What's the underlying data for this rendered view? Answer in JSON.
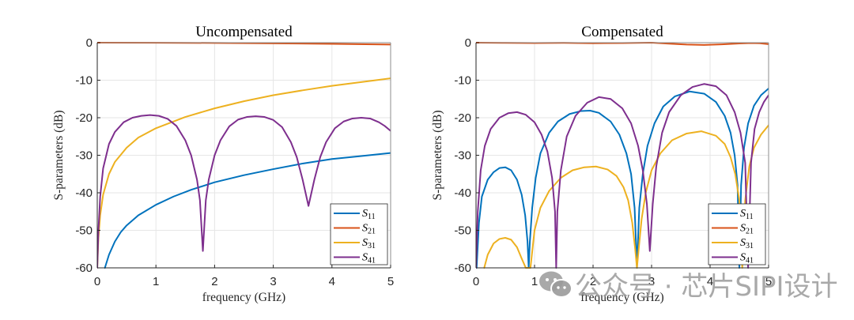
{
  "chart_data": [
    {
      "type": "line",
      "title": "Uncompensated",
      "xlabel": "frequency (GHz)",
      "ylabel": "S-parameters (dB)",
      "xlim": [
        0,
        5
      ],
      "ylim": [
        -60,
        0
      ],
      "xticks": [
        0,
        1,
        2,
        3,
        4,
        5
      ],
      "yticks": [
        0,
        -10,
        -20,
        -30,
        -40,
        -50,
        -60
      ],
      "grid": true,
      "legend_position": "bottom-right",
      "series": [
        {
          "name": "S11",
          "sub": "11",
          "color": "#0072BD",
          "x": [
            0.13,
            0.2,
            0.3,
            0.4,
            0.5,
            0.7,
            1.0,
            1.3,
            1.6,
            2.0,
            2.5,
            3.0,
            3.5,
            4.0,
            4.5,
            5.0
          ],
          "y": [
            -60,
            -56.5,
            -53,
            -50.5,
            -48.7,
            -46,
            -43.2,
            -41,
            -39.2,
            -37.2,
            -35.3,
            -33.7,
            -32.2,
            -31.0,
            -30.2,
            -29.4
          ]
        },
        {
          "name": "S21",
          "sub": "21",
          "color": "#D95319",
          "x": [
            0,
            1,
            2,
            3,
            4,
            5
          ],
          "y": [
            0,
            -0.02,
            -0.08,
            -0.18,
            -0.32,
            -0.5
          ]
        },
        {
          "name": "S31",
          "sub": "31",
          "color": "#EDB120",
          "x": [
            0.0,
            0.02,
            0.05,
            0.1,
            0.2,
            0.3,
            0.5,
            0.7,
            1.0,
            1.5,
            2.0,
            2.5,
            3.0,
            3.5,
            4.0,
            4.5,
            5.0
          ],
          "y": [
            -60,
            -52,
            -46,
            -40.5,
            -35,
            -31.8,
            -28,
            -25.3,
            -22.8,
            -19.8,
            -17.5,
            -15.6,
            -14.0,
            -12.7,
            -11.5,
            -10.5,
            -9.5
          ]
        },
        {
          "name": "S41",
          "sub": "41",
          "color": "#7E2F8E",
          "x": [
            0.0,
            0.02,
            0.05,
            0.1,
            0.2,
            0.3,
            0.45,
            0.6,
            0.75,
            0.9,
            1.05,
            1.2,
            1.35,
            1.5,
            1.6,
            1.7,
            1.75,
            1.8,
            1.85,
            1.9,
            2.0,
            2.1,
            2.25,
            2.4,
            2.55,
            2.7,
            2.85,
            3.0,
            3.15,
            3.3,
            3.4,
            3.5,
            3.55,
            3.6,
            3.65,
            3.7,
            3.8,
            3.9,
            4.05,
            4.2,
            4.35,
            4.5,
            4.65,
            4.8,
            4.9,
            5.0
          ],
          "y": [
            -60,
            -50,
            -41,
            -33.5,
            -27,
            -23.8,
            -21.2,
            -20,
            -19.5,
            -19.3,
            -19.5,
            -20.3,
            -22.2,
            -26,
            -30,
            -36.5,
            -42,
            -55.5,
            -42,
            -36.5,
            -30,
            -26,
            -22.3,
            -20.5,
            -19.8,
            -19.6,
            -19.8,
            -20.6,
            -22.5,
            -26.5,
            -30.5,
            -36.5,
            -40,
            -43.5,
            -40,
            -36.5,
            -30.5,
            -26.5,
            -22.8,
            -21,
            -20.2,
            -20.0,
            -20.2,
            -21.2,
            -22.2,
            -23.5
          ]
        }
      ]
    },
    {
      "type": "line",
      "title": "Compensated",
      "xlabel": "frequency (GHz)",
      "ylabel": "S-parameters (dB)",
      "xlim": [
        0,
        5
      ],
      "ylim": [
        -60,
        0
      ],
      "xticks": [
        0,
        1,
        2,
        3,
        4,
        5
      ],
      "yticks": [
        0,
        -10,
        -20,
        -30,
        -40,
        -50,
        -60
      ],
      "grid": true,
      "legend_position": "bottom-right",
      "series": [
        {
          "name": "S11",
          "sub": "11",
          "color": "#0072BD",
          "x": [
            0.01,
            0.05,
            0.1,
            0.2,
            0.3,
            0.4,
            0.5,
            0.6,
            0.7,
            0.78,
            0.84,
            0.88,
            0.9,
            0.92,
            0.96,
            1.02,
            1.1,
            1.25,
            1.4,
            1.6,
            1.8,
            1.95,
            2.1,
            2.3,
            2.45,
            2.57,
            2.65,
            2.71,
            2.75,
            2.79,
            2.85,
            2.93,
            3.05,
            3.2,
            3.4,
            3.65,
            3.9,
            4.1,
            4.25,
            4.35,
            4.42,
            4.47,
            4.5,
            4.53,
            4.58,
            4.65,
            4.75,
            4.87,
            5.0
          ],
          "y": [
            -60,
            -48,
            -41,
            -36.5,
            -34.5,
            -33.4,
            -33.2,
            -34,
            -36.5,
            -40.5,
            -46,
            -53,
            -60,
            -53,
            -44,
            -36,
            -29.5,
            -24,
            -21,
            -19,
            -18.2,
            -18.1,
            -18.7,
            -21,
            -24.5,
            -29.5,
            -35,
            -44,
            -60,
            -44,
            -35,
            -27.5,
            -21.5,
            -17,
            -14.3,
            -13.0,
            -13.6,
            -15.8,
            -19.5,
            -24,
            -30,
            -38,
            -60,
            -38,
            -28,
            -21.5,
            -16.8,
            -14,
            -12.2
          ]
        },
        {
          "name": "S21",
          "sub": "21",
          "color": "#D95319",
          "x": [
            0,
            0.5,
            1,
            1.5,
            2,
            2.5,
            3,
            3.3,
            3.6,
            3.9,
            4.2,
            4.5,
            4.7,
            4.85,
            5.0
          ],
          "y": [
            0,
            -0.05,
            -0.1,
            -0.05,
            -0.15,
            -0.1,
            0,
            -0.25,
            -0.5,
            -0.6,
            -0.45,
            -0.2,
            -0.1,
            -0.15,
            -0.4
          ]
        },
        {
          "name": "S31",
          "sub": "31",
          "color": "#EDB120",
          "x": [
            0.14,
            0.2,
            0.3,
            0.4,
            0.5,
            0.6,
            0.7,
            0.78,
            0.85,
            0.93,
            1.0,
            1.1,
            1.25,
            1.45,
            1.65,
            1.85,
            2.05,
            2.25,
            2.4,
            2.52,
            2.6,
            2.67,
            2.72,
            2.75,
            2.78,
            2.83,
            2.9,
            3.0,
            3.15,
            3.35,
            3.6,
            3.85,
            4.1,
            4.25,
            4.35,
            4.43,
            4.5,
            4.55,
            4.6,
            4.67,
            4.75,
            4.87,
            5.0
          ],
          "y": [
            -60,
            -56.5,
            -53.5,
            -52.3,
            -52,
            -52.5,
            -54.5,
            -57.5,
            -60,
            -60,
            -50,
            -44,
            -39.5,
            -36,
            -34,
            -33.2,
            -33.0,
            -33.8,
            -35.5,
            -38.5,
            -42,
            -48,
            -55,
            -60,
            -55,
            -47,
            -40,
            -34,
            -29.5,
            -26,
            -24.2,
            -23.6,
            -24.8,
            -27,
            -30.5,
            -35,
            -42,
            -60,
            -42,
            -33,
            -28,
            -24.5,
            -22
          ]
        },
        {
          "name": "S41",
          "sub": "41",
          "color": "#7E2F8E",
          "x": [
            0.0,
            0.03,
            0.08,
            0.15,
            0.25,
            0.4,
            0.55,
            0.7,
            0.85,
            1.0,
            1.12,
            1.22,
            1.3,
            1.35,
            1.37,
            1.39,
            1.45,
            1.55,
            1.7,
            1.9,
            2.1,
            2.3,
            2.5,
            2.65,
            2.77,
            2.85,
            2.92,
            2.97,
            3.02,
            3.08,
            3.18,
            3.3,
            3.5,
            3.7,
            3.9,
            4.1,
            4.28,
            4.42,
            4.52,
            4.6,
            4.65,
            4.7,
            4.76,
            4.84,
            4.92,
            5.0
          ],
          "y": [
            -60,
            -45,
            -34,
            -27.5,
            -23,
            -20,
            -18.8,
            -18.5,
            -19.2,
            -21.2,
            -24.5,
            -29,
            -36,
            -45,
            -60,
            -45,
            -34,
            -25,
            -19.5,
            -16,
            -14.5,
            -15,
            -17.5,
            -21.5,
            -27.5,
            -34,
            -43,
            -55.5,
            -43,
            -33,
            -24,
            -18.5,
            -14,
            -11.8,
            -11.0,
            -11.6,
            -14,
            -18.5,
            -24,
            -32,
            -60,
            -32,
            -23,
            -18.5,
            -15.8,
            -14
          ]
        }
      ]
    }
  ],
  "watermark": {
    "icon": "wechat-icon",
    "text": "公众号 · 芯片SIPI设计"
  }
}
